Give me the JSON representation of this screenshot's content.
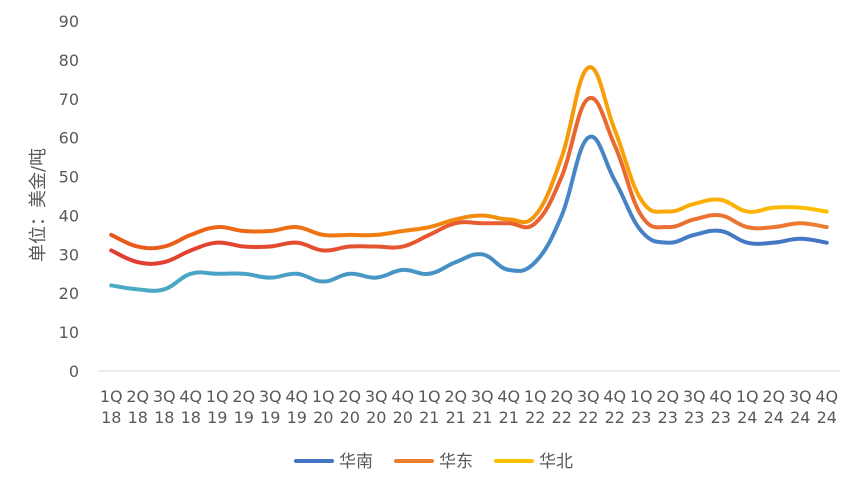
{
  "chart_data": {
    "type": "line",
    "title": "",
    "xlabel": "",
    "ylabel": "单位：美金/吨",
    "ylim": [
      0,
      90
    ],
    "yticks": [
      0,
      10,
      20,
      30,
      40,
      50,
      60,
      70,
      80,
      90
    ],
    "grid": false,
    "legend_position": "bottom",
    "categories": [
      [
        "1Q",
        "18"
      ],
      [
        "2Q",
        "18"
      ],
      [
        "3Q",
        "18"
      ],
      [
        "4Q",
        "18"
      ],
      [
        "1Q",
        "19"
      ],
      [
        "2Q",
        "19"
      ],
      [
        "3Q",
        "19"
      ],
      [
        "4Q",
        "19"
      ],
      [
        "1Q",
        "20"
      ],
      [
        "2Q",
        "20"
      ],
      [
        "3Q",
        "20"
      ],
      [
        "4Q",
        "20"
      ],
      [
        "1Q",
        "21"
      ],
      [
        "2Q",
        "21"
      ],
      [
        "3Q",
        "21"
      ],
      [
        "4Q",
        "21"
      ],
      [
        "1Q",
        "22"
      ],
      [
        "2Q",
        "22"
      ],
      [
        "3Q",
        "22"
      ],
      [
        "4Q",
        "22"
      ],
      [
        "1Q",
        "23"
      ],
      [
        "2Q",
        "23"
      ],
      [
        "3Q",
        "23"
      ],
      [
        "4Q",
        "23"
      ],
      [
        "1Q",
        "24"
      ],
      [
        "2Q",
        "24"
      ],
      [
        "3Q",
        "24"
      ],
      [
        "4Q",
        "24"
      ]
    ],
    "series": [
      {
        "name": "华南",
        "color_start": "#4bacc6",
        "color_end": "#4472c4",
        "values": [
          22,
          21,
          21,
          25,
          25,
          25,
          24,
          25,
          23,
          25,
          24,
          26,
          25,
          28,
          30,
          26,
          28,
          40,
          60,
          49,
          36,
          33,
          35,
          36,
          33,
          33,
          34,
          33
        ]
      },
      {
        "name": "华东",
        "color_start": "#e03c31",
        "color_end": "#ed7d31",
        "values": [
          31,
          28,
          28,
          31,
          33,
          32,
          32,
          33,
          31,
          32,
          32,
          32,
          35,
          38,
          38,
          38,
          38,
          50,
          70,
          58,
          40,
          37,
          39,
          40,
          37,
          37,
          38,
          37
        ]
      },
      {
        "name": "华北",
        "color_start": "#e8561c",
        "color_end": "#ffc000",
        "values": [
          35,
          32,
          32,
          35,
          37,
          36,
          36,
          37,
          35,
          35,
          35,
          36,
          37,
          39,
          40,
          39,
          40,
          55,
          78,
          62,
          44,
          41,
          43,
          44,
          41,
          42,
          42,
          41
        ]
      }
    ]
  }
}
